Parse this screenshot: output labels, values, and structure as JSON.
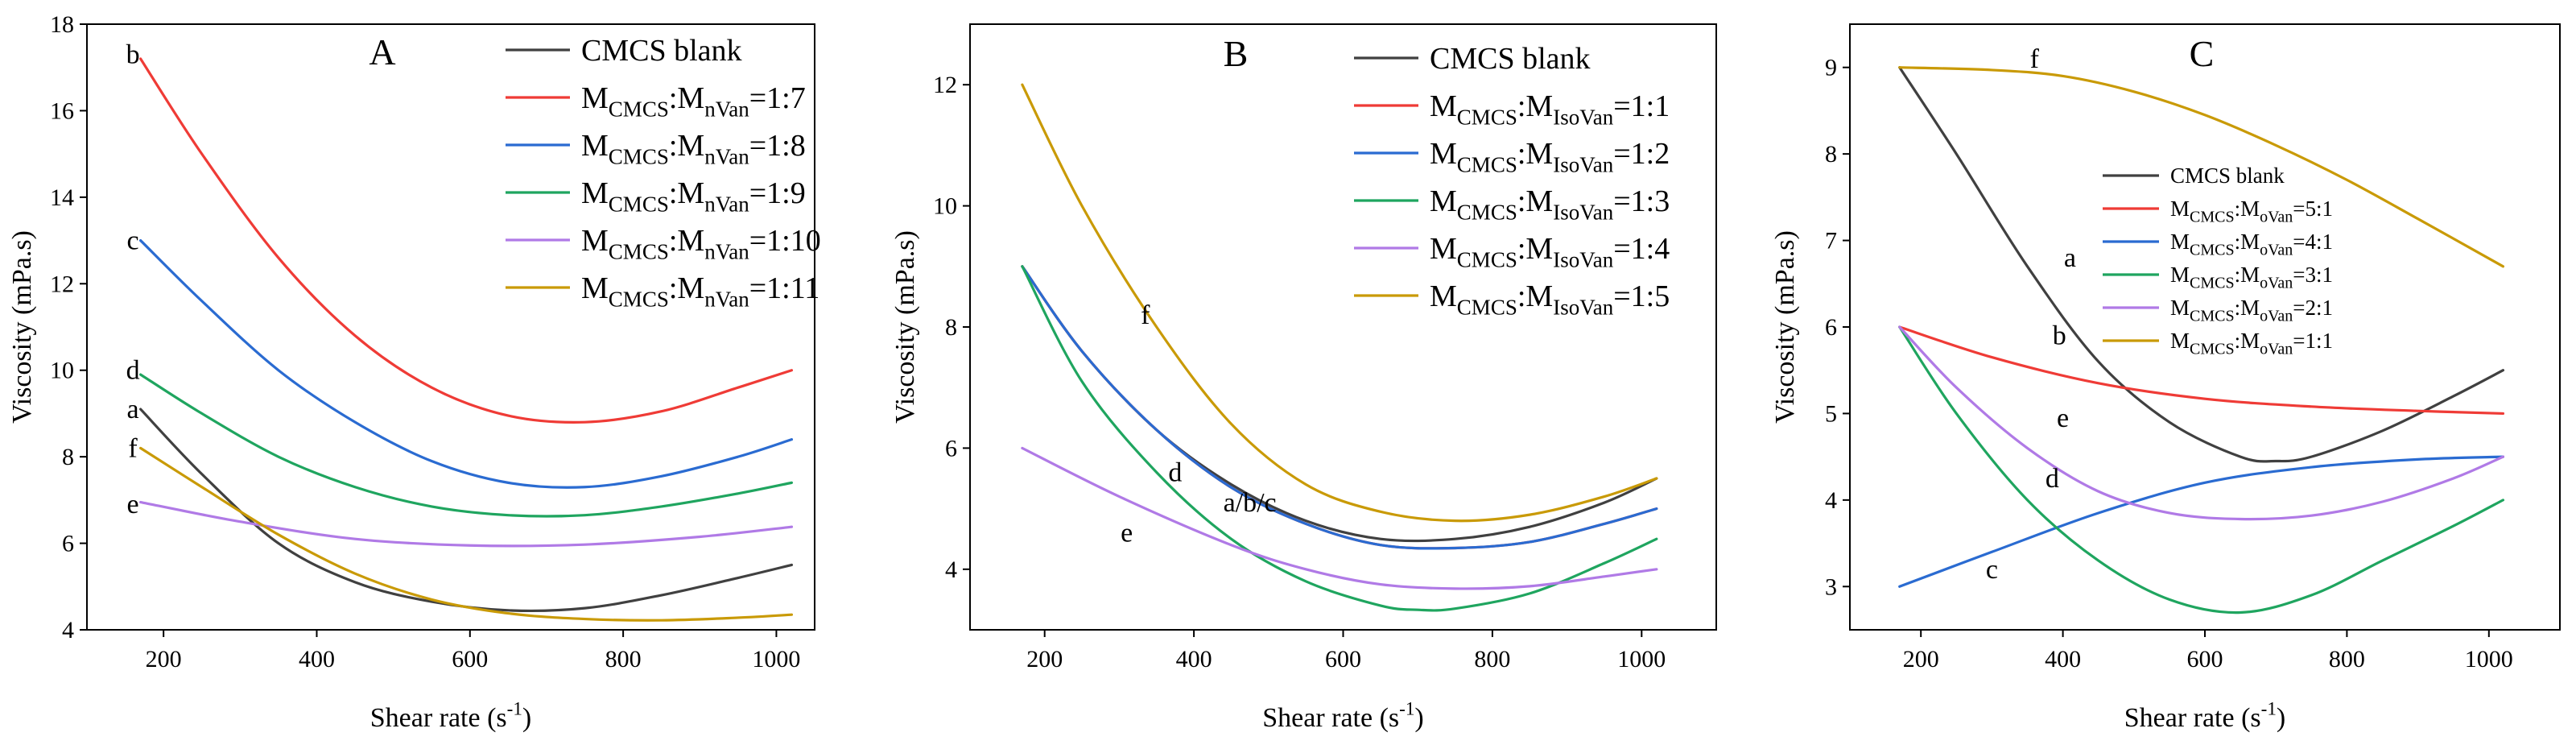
{
  "chart_data": [
    {
      "panel": "A",
      "type": "line",
      "xlabel": "Shear rate (s-1)",
      "ylabel": "Viscosity (mPa.s)",
      "xlim": [
        100,
        1050
      ],
      "ylim": [
        4,
        18
      ],
      "xticks": [
        200,
        400,
        600,
        800,
        1000
      ],
      "yticks": [
        4,
        6,
        8,
        10,
        12,
        14,
        16,
        18
      ],
      "legend": "top-right",
      "series": [
        {
          "name": "CMCS blank",
          "main": "",
          "sub1": "",
          "mid": "",
          "sub2": "",
          "ratio": "",
          "letter": "a",
          "color": "#404040",
          "points": [
            [
              170,
              9.1
            ],
            [
              250,
              7.6
            ],
            [
              350,
              6.0
            ],
            [
              450,
              5.1
            ],
            [
              550,
              4.65
            ],
            [
              650,
              4.45
            ],
            [
              750,
              4.5
            ],
            [
              850,
              4.8
            ],
            [
              950,
              5.2
            ],
            [
              1020,
              5.5
            ]
          ]
        },
        {
          "name": "",
          "main": "M",
          "sub1": "CMCS",
          "mid": ":M",
          "sub2": "nVan",
          "ratio": "=1:7",
          "letter": "b",
          "color": "#ef3b36",
          "points": [
            [
              170,
              17.2
            ],
            [
              250,
              15.0
            ],
            [
              350,
              12.6
            ],
            [
              450,
              10.8
            ],
            [
              550,
              9.6
            ],
            [
              650,
              8.95
            ],
            [
              750,
              8.8
            ],
            [
              850,
              9.05
            ],
            [
              950,
              9.6
            ],
            [
              1020,
              10.0
            ]
          ]
        },
        {
          "name": "",
          "main": "M",
          "sub1": "CMCS",
          "mid": ":M",
          "sub2": "nVan",
          "ratio": "=1:8",
          "letter": "c",
          "color": "#2a6bd1",
          "points": [
            [
              170,
              13.0
            ],
            [
              250,
              11.6
            ],
            [
              350,
              10.0
            ],
            [
              450,
              8.8
            ],
            [
              550,
              7.9
            ],
            [
              650,
              7.4
            ],
            [
              750,
              7.3
            ],
            [
              850,
              7.55
            ],
            [
              950,
              8.0
            ],
            [
              1020,
              8.4
            ]
          ]
        },
        {
          "name": "",
          "main": "M",
          "sub1": "CMCS",
          "mid": ":M",
          "sub2": "nVan",
          "ratio": "=1:9",
          "letter": "d",
          "color": "#1fa55f",
          "points": [
            [
              170,
              9.9
            ],
            [
              250,
              9.0
            ],
            [
              350,
              8.0
            ],
            [
              450,
              7.3
            ],
            [
              550,
              6.85
            ],
            [
              650,
              6.65
            ],
            [
              750,
              6.65
            ],
            [
              850,
              6.85
            ],
            [
              950,
              7.15
            ],
            [
              1020,
              7.4
            ]
          ]
        },
        {
          "name": "",
          "main": "M",
          "sub1": "CMCS",
          "mid": ":M",
          "sub2": "nVan",
          "ratio": "=1:10",
          "letter": "e",
          "color": "#b07ae6",
          "points": [
            [
              170,
              6.95
            ],
            [
              300,
              6.5
            ],
            [
              450,
              6.1
            ],
            [
              600,
              5.95
            ],
            [
              750,
              5.97
            ],
            [
              900,
              6.15
            ],
            [
              1020,
              6.38
            ]
          ]
        },
        {
          "name": "",
          "main": "M",
          "sub1": "CMCS",
          "mid": ":M",
          "sub2": "nVan",
          "ratio": "=1:11",
          "letter": "f",
          "color": "#c99a06",
          "points": [
            [
              170,
              8.2
            ],
            [
              250,
              7.3
            ],
            [
              350,
              6.2
            ],
            [
              450,
              5.3
            ],
            [
              550,
              4.7
            ],
            [
              650,
              4.38
            ],
            [
              750,
              4.25
            ],
            [
              850,
              4.22
            ],
            [
              950,
              4.28
            ],
            [
              1020,
              4.35
            ]
          ]
        }
      ],
      "curve_labels": [
        {
          "t": "b",
          "x": 160,
          "y": 17.3
        },
        {
          "t": "c",
          "x": 160,
          "y": 13.0
        },
        {
          "t": "d",
          "x": 160,
          "y": 10.0
        },
        {
          "t": "a",
          "x": 160,
          "y": 9.1
        },
        {
          "t": "f",
          "x": 160,
          "y": 8.2
        },
        {
          "t": "e",
          "x": 160,
          "y": 6.9
        }
      ]
    },
    {
      "panel": "B",
      "type": "line",
      "xlabel": "Shear rate (s-1)",
      "ylabel": "Viscosity (mPa.s)",
      "xlim": [
        100,
        1100
      ],
      "ylim": [
        3,
        13
      ],
      "xticks": [
        200,
        400,
        600,
        800,
        1000
      ],
      "yticks": [
        4,
        6,
        8,
        10,
        12
      ],
      "legend": "top-right",
      "series": [
        {
          "name": "CMCS blank",
          "main": "",
          "sub1": "",
          "mid": "",
          "sub2": "",
          "ratio": "",
          "letter": "a",
          "color": "#404040",
          "points": [
            [
              170,
              9.0
            ],
            [
              250,
              7.6
            ],
            [
              350,
              6.3
            ],
            [
              450,
              5.4
            ],
            [
              550,
              4.8
            ],
            [
              650,
              4.5
            ],
            [
              750,
              4.5
            ],
            [
              850,
              4.7
            ],
            [
              950,
              5.1
            ],
            [
              1020,
              5.5
            ]
          ]
        },
        {
          "name": "",
          "main": "M",
          "sub1": "CMCS",
          "mid": ":M",
          "sub2": "IsoVan",
          "ratio": "=1:1",
          "letter": "b",
          "color": "#ef3b36",
          "points": [
            [
              170,
              9.0
            ],
            [
              250,
              7.6
            ],
            [
              350,
              6.3
            ],
            [
              450,
              5.35
            ],
            [
              550,
              4.75
            ],
            [
              650,
              4.4
            ],
            [
              750,
              4.35
            ],
            [
              850,
              4.45
            ],
            [
              950,
              4.75
            ],
            [
              1020,
              5.0
            ]
          ]
        },
        {
          "name": "",
          "main": "M",
          "sub1": "CMCS",
          "mid": ":M",
          "sub2": "IsoVan",
          "ratio": "=1:2",
          "letter": "c",
          "color": "#2a6bd1",
          "points": [
            [
              170,
              9.0
            ],
            [
              250,
              7.6
            ],
            [
              350,
              6.3
            ],
            [
              450,
              5.35
            ],
            [
              550,
              4.75
            ],
            [
              650,
              4.4
            ],
            [
              750,
              4.35
            ],
            [
              850,
              4.45
            ],
            [
              950,
              4.75
            ],
            [
              1020,
              5.0
            ]
          ]
        },
        {
          "name": "",
          "main": "M",
          "sub1": "CMCS",
          "mid": ":M",
          "sub2": "IsoVan",
          "ratio": "=1:3",
          "letter": "d",
          "color": "#1fa55f",
          "points": [
            [
              170,
              9.0
            ],
            [
              250,
              7.1
            ],
            [
              350,
              5.6
            ],
            [
              450,
              4.5
            ],
            [
              550,
              3.8
            ],
            [
              650,
              3.4
            ],
            [
              700,
              3.33
            ],
            [
              750,
              3.35
            ],
            [
              850,
              3.6
            ],
            [
              950,
              4.1
            ],
            [
              1020,
              4.5
            ]
          ]
        },
        {
          "name": "",
          "main": "M",
          "sub1": "CMCS",
          "mid": ":M",
          "sub2": "IsoVan",
          "ratio": "=1:4",
          "letter": "e",
          "color": "#b07ae6",
          "points": [
            [
              170,
              6.0
            ],
            [
              300,
              5.2
            ],
            [
              450,
              4.4
            ],
            [
              550,
              4.0
            ],
            [
              650,
              3.75
            ],
            [
              750,
              3.68
            ],
            [
              850,
              3.72
            ],
            [
              950,
              3.88
            ],
            [
              1020,
              4.0
            ]
          ]
        },
        {
          "name": "",
          "main": "M",
          "sub1": "CMCS",
          "mid": ":M",
          "sub2": "IsoVan",
          "ratio": "=1:5",
          "letter": "f",
          "color": "#c99a06",
          "points": [
            [
              170,
              12.0
            ],
            [
              250,
              10.0
            ],
            [
              350,
              8.0
            ],
            [
              450,
              6.4
            ],
            [
              550,
              5.4
            ],
            [
              650,
              4.95
            ],
            [
              750,
              4.8
            ],
            [
              850,
              4.9
            ],
            [
              950,
              5.2
            ],
            [
              1020,
              5.5
            ]
          ]
        }
      ],
      "curve_labels": [
        {
          "t": "f",
          "x": 335,
          "y": 8.2
        },
        {
          "t": "d",
          "x": 375,
          "y": 5.6
        },
        {
          "t": "a/b/c",
          "x": 475,
          "y": 5.1
        },
        {
          "t": "e",
          "x": 310,
          "y": 4.6
        }
      ]
    },
    {
      "panel": "C",
      "type": "line",
      "xlabel": "Shear rate (s-1)",
      "ylabel": "Viscosity (mPa.s)",
      "xlim": [
        100,
        1100
      ],
      "ylim": [
        2.5,
        9.5
      ],
      "xticks": [
        200,
        400,
        600,
        800,
        1000
      ],
      "yticks": [
        3,
        4,
        5,
        6,
        7,
        8,
        9
      ],
      "legend": "center",
      "series": [
        {
          "name": "CMCS blank",
          "main": "",
          "sub1": "",
          "mid": "",
          "sub2": "",
          "ratio": "",
          "letter": "a",
          "color": "#404040",
          "points": [
            [
              170,
              9.0
            ],
            [
              250,
              8.0
            ],
            [
              350,
              6.7
            ],
            [
              450,
              5.6
            ],
            [
              550,
              4.9
            ],
            [
              650,
              4.5
            ],
            [
              700,
              4.45
            ],
            [
              750,
              4.5
            ],
            [
              850,
              4.8
            ],
            [
              950,
              5.2
            ],
            [
              1020,
              5.5
            ]
          ]
        },
        {
          "name": "",
          "main": "M",
          "sub1": "CMCS",
          "mid": ":M",
          "sub2": "oVan",
          "ratio": "=5:1",
          "letter": "b",
          "color": "#ef3b36",
          "points": [
            [
              170,
              6.0
            ],
            [
              300,
              5.65
            ],
            [
              450,
              5.35
            ],
            [
              600,
              5.17
            ],
            [
              750,
              5.08
            ],
            [
              900,
              5.03
            ],
            [
              1020,
              5.0
            ]
          ]
        },
        {
          "name": "",
          "main": "M",
          "sub1": "CMCS",
          "mid": ":M",
          "sub2": "oVan",
          "ratio": "=4:1",
          "letter": "c",
          "color": "#2a6bd1",
          "points": [
            [
              170,
              3.0
            ],
            [
              300,
              3.4
            ],
            [
              450,
              3.85
            ],
            [
              600,
              4.2
            ],
            [
              750,
              4.38
            ],
            [
              900,
              4.47
            ],
            [
              1020,
              4.5
            ]
          ]
        },
        {
          "name": "",
          "main": "M",
          "sub1": "CMCS",
          "mid": ":M",
          "sub2": "oVan",
          "ratio": "=3:1",
          "letter": "d",
          "color": "#1fa55f",
          "points": [
            [
              170,
              6.0
            ],
            [
              250,
              5.0
            ],
            [
              350,
              4.0
            ],
            [
              450,
              3.3
            ],
            [
              550,
              2.85
            ],
            [
              650,
              2.7
            ],
            [
              750,
              2.9
            ],
            [
              850,
              3.3
            ],
            [
              950,
              3.7
            ],
            [
              1020,
              4.0
            ]
          ]
        },
        {
          "name": "",
          "main": "M",
          "sub1": "CMCS",
          "mid": ":M",
          "sub2": "oVan",
          "ratio": "=2:1",
          "letter": "e",
          "color": "#b07ae6",
          "points": [
            [
              170,
              6.0
            ],
            [
              250,
              5.3
            ],
            [
              350,
              4.6
            ],
            [
              450,
              4.1
            ],
            [
              550,
              3.85
            ],
            [
              650,
              3.78
            ],
            [
              750,
              3.82
            ],
            [
              850,
              3.98
            ],
            [
              950,
              4.25
            ],
            [
              1020,
              4.5
            ]
          ]
        },
        {
          "name": "",
          "main": "M",
          "sub1": "CMCS",
          "mid": ":M",
          "sub2": "oVan",
          "ratio": "=1:1",
          "letter": "f",
          "color": "#c99a06",
          "points": [
            [
              170,
              9.0
            ],
            [
              300,
              8.97
            ],
            [
              400,
              8.9
            ],
            [
              500,
              8.72
            ],
            [
              600,
              8.45
            ],
            [
              700,
              8.1
            ],
            [
              800,
              7.7
            ],
            [
              900,
              7.25
            ],
            [
              1020,
              6.7
            ]
          ]
        }
      ],
      "curve_labels": [
        {
          "t": "f",
          "x": 360,
          "y": 9.1
        },
        {
          "t": "a",
          "x": 410,
          "y": 6.8
        },
        {
          "t": "b",
          "x": 395,
          "y": 5.9
        },
        {
          "t": "e",
          "x": 400,
          "y": 4.95
        },
        {
          "t": "d",
          "x": 385,
          "y": 4.25
        },
        {
          "t": "c",
          "x": 300,
          "y": 3.2
        }
      ]
    }
  ]
}
